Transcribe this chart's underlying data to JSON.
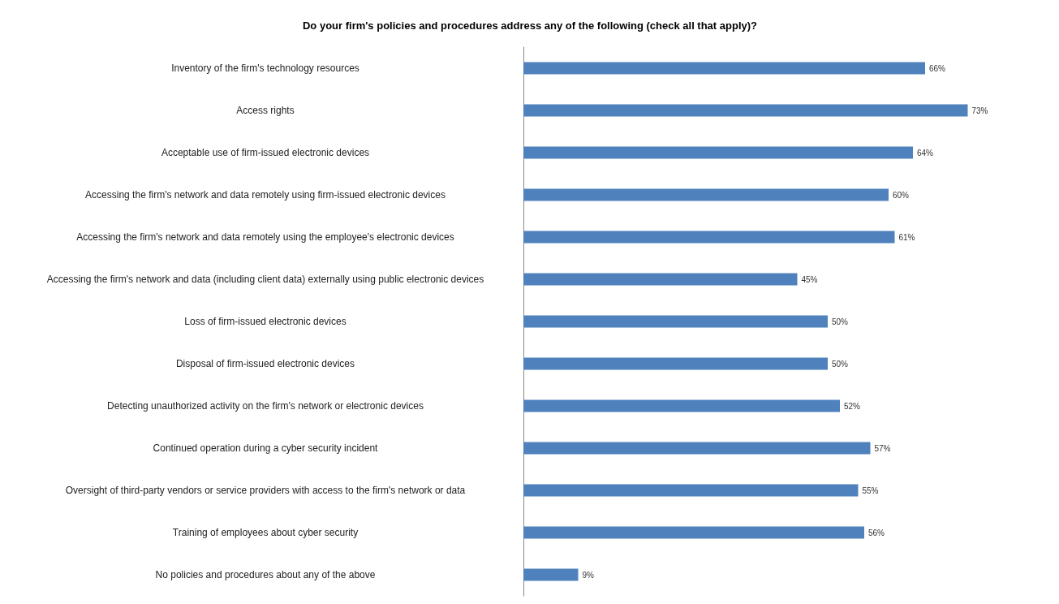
{
  "chart_data": {
    "type": "bar",
    "orientation": "horizontal",
    "title": "Do your firm's policies and procedures address any of the following (check all that apply)?",
    "categories": [
      "Inventory of the firm's technology resources",
      "Access rights",
      "Acceptable use of firm-issued electronic devices",
      "Accessing the firm's network and data remotely using firm-issued electronic devices",
      "Accessing the firm's network and data remotely using the employee's electronic devices",
      "Accessing the firm's network and data (including client data) externally using public electronic devices",
      "Loss of firm-issued electronic devices",
      "Disposal of firm-issued electronic devices",
      "Detecting unauthorized activity on the firm's network or electronic devices",
      "Continued operation during a cyber security incident",
      "Oversight of third-party vendors or service providers with access to the firm's network or data",
      "Training of employees about cyber security",
      "No policies and procedures about any of the above"
    ],
    "values": [
      66,
      73,
      64,
      60,
      61,
      45,
      50,
      50,
      52,
      57,
      55,
      56,
      9
    ],
    "value_labels": [
      "66%",
      "73%",
      "64%",
      "60%",
      "61%",
      "45%",
      "50%",
      "50%",
      "52%",
      "57%",
      "55%",
      "56%",
      "9%"
    ],
    "color": "#4f81bd"
  }
}
